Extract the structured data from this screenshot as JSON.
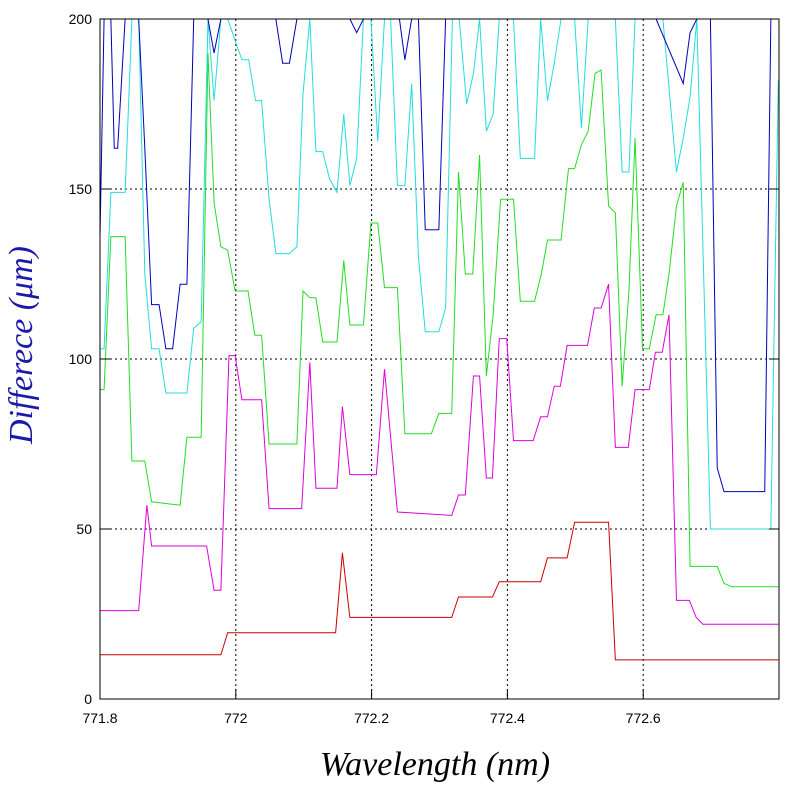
{
  "chart_data": {
    "type": "line",
    "xlabel": "Wavelength (nm)",
    "ylabel": "Differece (μm)",
    "xlim": [
      771.8,
      772.8
    ],
    "ylim": [
      0,
      200
    ],
    "xticks": [
      771.8,
      772,
      772.2,
      772.4,
      772.6
    ],
    "yticks": [
      0,
      50,
      100,
      150,
      200
    ],
    "grid": true,
    "series": [
      {
        "color": "#cc0000",
        "x": [
          771.8,
          771.978,
          771.988,
          772.147,
          772.157,
          772.168,
          772.318,
          772.328,
          772.378,
          772.388,
          772.449,
          772.459,
          772.488,
          772.499,
          772.549,
          772.559,
          772.799
        ],
        "values": [
          13,
          13,
          19.5,
          19.5,
          43,
          24,
          24,
          30,
          30,
          34.5,
          34.5,
          41.5,
          41.5,
          52,
          52,
          11.5,
          11.5
        ]
      },
      {
        "color": "#dd00dd",
        "x": [
          771.8,
          771.857,
          771.869,
          771.876,
          771.957,
          771.968,
          771.978,
          771.99,
          771.999,
          772.009,
          772.038,
          772.049,
          772.097,
          772.109,
          772.118,
          772.149,
          772.157,
          772.168,
          772.207,
          772.219,
          772.238,
          772.318,
          772.328,
          772.338,
          772.35,
          772.359,
          772.369,
          772.378,
          772.388,
          772.399,
          772.409,
          772.438,
          772.449,
          772.459,
          772.469,
          772.478,
          772.488,
          772.518,
          772.528,
          772.538,
          772.549,
          772.559,
          772.578,
          772.588,
          772.609,
          772.618,
          772.628,
          772.638,
          772.649,
          772.668,
          772.678,
          772.688,
          772.799
        ],
        "values": [
          26,
          26,
          57,
          45,
          45,
          32,
          32,
          101,
          101,
          88,
          88,
          56,
          56,
          99,
          62,
          62,
          86,
          66,
          66,
          97,
          55,
          54,
          60,
          60,
          95,
          95,
          65,
          65,
          106,
          106,
          76,
          76,
          83,
          83,
          92,
          92,
          104,
          104,
          115,
          115,
          122,
          74,
          74,
          91,
          91,
          102,
          102,
          113,
          29,
          29,
          24,
          22,
          22
        ]
      },
      {
        "color": "#22dd22",
        "x": [
          771.8,
          771.806,
          771.816,
          771.837,
          771.847,
          771.866,
          771.876,
          771.918,
          771.928,
          771.949,
          771.959,
          771.968,
          771.978,
          771.988,
          771.999,
          772.018,
          772.028,
          772.038,
          772.049,
          772.09,
          772.099,
          772.109,
          772.118,
          772.128,
          772.149,
          772.159,
          772.168,
          772.178,
          772.188,
          772.199,
          772.209,
          772.219,
          772.238,
          772.249,
          772.288,
          772.299,
          772.318,
          772.328,
          772.338,
          772.349,
          772.359,
          772.369,
          772.379,
          772.39,
          772.409,
          772.419,
          772.44,
          772.45,
          772.459,
          772.479,
          772.49,
          772.499,
          772.509,
          772.519,
          772.529,
          772.538,
          772.549,
          772.559,
          772.569,
          772.579,
          772.588,
          772.599,
          772.609,
          772.619,
          772.629,
          772.638,
          772.649,
          772.659,
          772.669,
          772.709,
          772.719,
          772.731,
          772.799
        ],
        "values": [
          91,
          91,
          136,
          136,
          70,
          70,
          58,
          57,
          77,
          77,
          190,
          146,
          133,
          132,
          120,
          120,
          107,
          107,
          75,
          75,
          120,
          118,
          118,
          105,
          105,
          129,
          110,
          110,
          110,
          140,
          140,
          121,
          121,
          78,
          78,
          84,
          84,
          155,
          125,
          125,
          160,
          95,
          113,
          147,
          147,
          117,
          117,
          125,
          135,
          135,
          156,
          156,
          163,
          167,
          184,
          185,
          145,
          143,
          92,
          120,
          165,
          103,
          103,
          113,
          113,
          125,
          145,
          152,
          39,
          39,
          34,
          33,
          33
        ]
      },
      {
        "color": "#22dddd",
        "x": [
          771.8,
          771.806,
          771.816,
          771.837,
          771.847,
          771.857,
          771.866,
          771.876,
          771.887,
          771.897,
          771.928,
          771.938,
          771.949,
          771.959,
          771.968,
          771.978,
          771.988,
          772.009,
          772.019,
          772.029,
          772.038,
          772.049,
          772.059,
          772.079,
          772.09,
          772.099,
          772.109,
          772.118,
          772.128,
          772.138,
          772.149,
          772.159,
          772.168,
          772.178,
          772.188,
          772.199,
          772.209,
          772.219,
          772.228,
          772.238,
          772.249,
          772.259,
          772.269,
          772.279,
          772.299,
          772.309,
          772.319,
          772.329,
          772.34,
          772.35,
          772.359,
          772.369,
          772.379,
          772.388,
          772.4,
          772.409,
          772.419,
          772.44,
          772.449,
          772.459,
          772.469,
          772.479,
          772.49,
          772.499,
          772.509,
          772.519,
          772.559,
          772.569,
          772.579,
          772.588,
          772.599,
          772.609,
          772.629,
          772.649,
          772.659,
          772.669,
          772.679,
          772.699,
          772.788,
          772.799
        ],
        "values": [
          103,
          103,
          149,
          149,
          200,
          200,
          125,
          103,
          103,
          90,
          90,
          109,
          111,
          200,
          176,
          200,
          200,
          188,
          188,
          176,
          176,
          147,
          131,
          131,
          133,
          178,
          200,
          161,
          161,
          153,
          149,
          172,
          151,
          159,
          200,
          200,
          164,
          200,
          200,
          151,
          151,
          181,
          130,
          108,
          108,
          115,
          200,
          200,
          175,
          184,
          200,
          167,
          172,
          200,
          200,
          200,
          159,
          159,
          200,
          176,
          187,
          200,
          200,
          200,
          168,
          200,
          200,
          155,
          155,
          200,
          200,
          200,
          200,
          155,
          165,
          177,
          200,
          50,
          50,
          182
        ]
      },
      {
        "color": "#0000bb",
        "x": [
          771.8,
          771.806,
          771.816,
          771.821,
          771.826,
          771.837,
          771.857,
          771.866,
          771.876,
          771.887,
          771.897,
          771.907,
          771.918,
          771.928,
          771.938,
          771.959,
          771.968,
          771.978,
          772.059,
          772.069,
          772.079,
          772.09,
          772.168,
          772.178,
          772.188,
          772.241,
          772.249,
          772.259,
          772.269,
          772.279,
          772.299,
          772.309,
          772.609,
          772.619,
          772.659,
          772.669,
          772.679,
          772.699,
          772.709,
          772.719,
          772.779,
          772.788,
          772.799
        ],
        "values": [
          136,
          200,
          200,
          162,
          162,
          200,
          200,
          162,
          116,
          116,
          103,
          103,
          122,
          122,
          200,
          200,
          190,
          200,
          200,
          187,
          187,
          200,
          200,
          196,
          200,
          200,
          188,
          200,
          200,
          138,
          138,
          200,
          200,
          200,
          181,
          196,
          200,
          200,
          68,
          61,
          61,
          200,
          200
        ]
      }
    ]
  }
}
